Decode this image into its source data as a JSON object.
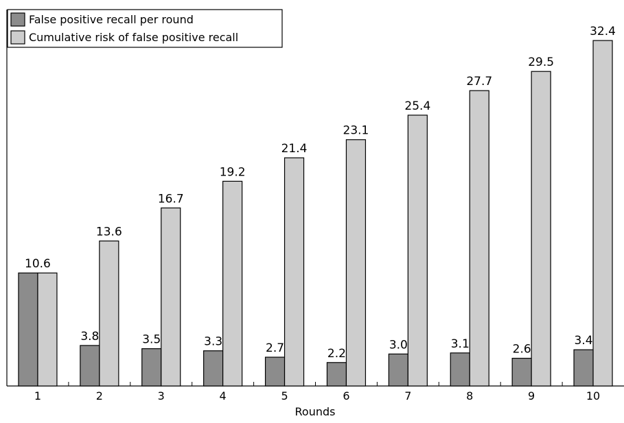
{
  "chart_data": {
    "type": "bar",
    "title": "",
    "xlabel": "Rounds",
    "ylabel": "",
    "categories": [
      "1",
      "2",
      "3",
      "4",
      "5",
      "6",
      "7",
      "8",
      "9",
      "10"
    ],
    "series": [
      {
        "name": "False positive recall per round",
        "color": "#8c8c8c",
        "values": [
          10.6,
          3.8,
          3.5,
          3.3,
          2.7,
          2.2,
          3.0,
          3.1,
          2.6,
          3.4
        ],
        "labels": [
          "",
          "3.8",
          "3.5",
          "3.3",
          "2.7",
          "2.2",
          "3.0",
          "3.1",
          "2.6",
          "3.4"
        ]
      },
      {
        "name": "Cumulative risk of false positive recall",
        "color": "#cdcdcd",
        "values": [
          10.6,
          13.6,
          16.7,
          19.2,
          21.4,
          23.1,
          25.4,
          27.7,
          29.5,
          32.4
        ],
        "labels": [
          "",
          "13.6",
          "16.7",
          "19.2",
          "21.4",
          "23.1",
          "25.4",
          "27.7",
          "29.5",
          "32.4"
        ]
      }
    ],
    "shared_labels": [
      "10.6",
      "",
      "",
      "",
      "",
      "",
      "",
      "",
      "",
      ""
    ],
    "ylim": [
      0,
      35.3
    ],
    "grid": false,
    "legend_position": "top-left"
  }
}
